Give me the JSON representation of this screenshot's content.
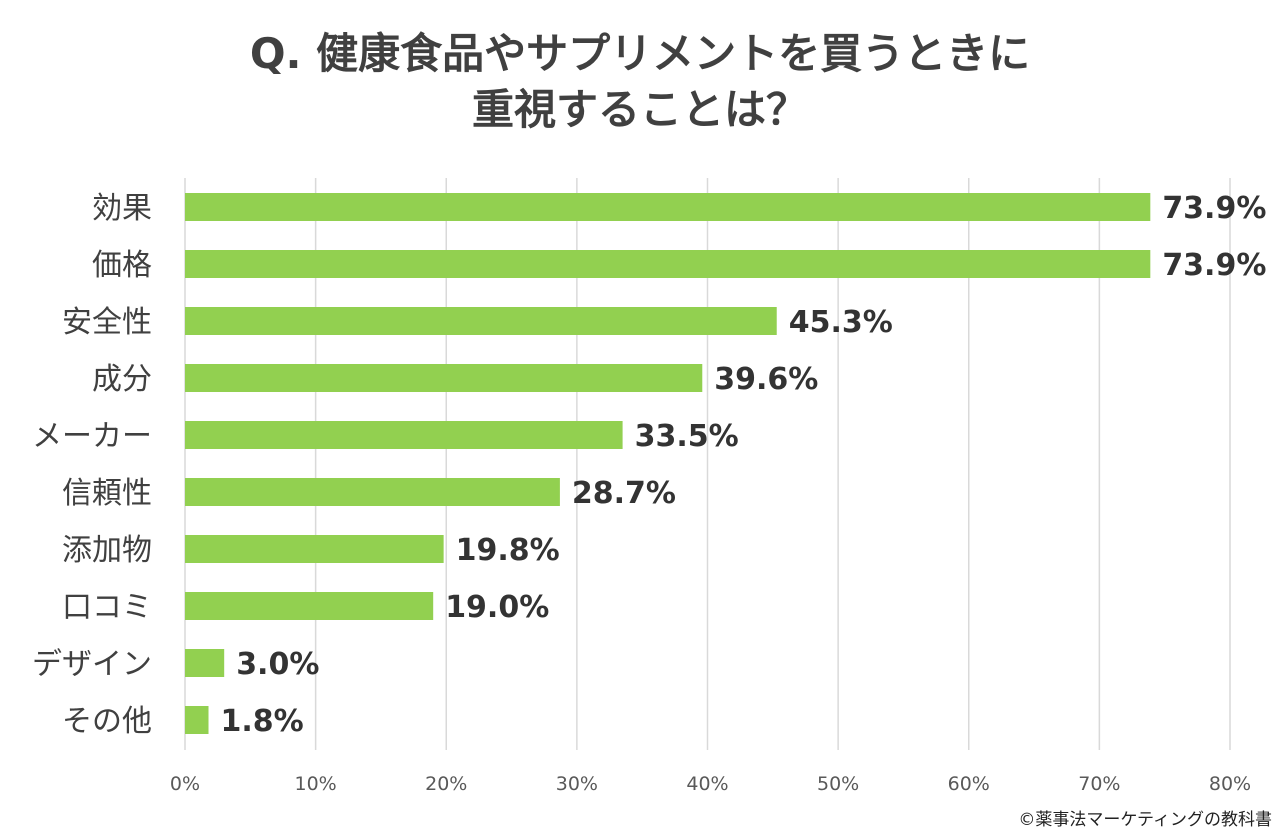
{
  "chart_data": {
    "type": "bar",
    "orientation": "horizontal",
    "title_lines": [
      "Q. 健康食品やサプリメントを買うときに",
      "重視することは？"
    ],
    "categories": [
      "効果",
      "価格",
      "安全性",
      "成分",
      "メーカー",
      "信頼性",
      "添加物",
      "口コミ",
      "デザイン",
      "その他"
    ],
    "values": [
      73.9,
      73.9,
      45.3,
      39.6,
      33.5,
      28.7,
      19.8,
      19.0,
      3.0,
      1.8
    ],
    "value_labels": [
      "73.9%",
      "73.9%",
      "45.3%",
      "39.6%",
      "33.5%",
      "28.7%",
      "19.8%",
      "19.0%",
      "3.0%",
      "1.8%"
    ],
    "xlim": [
      0,
      80
    ],
    "x_ticks": [
      0,
      10,
      20,
      30,
      40,
      50,
      60,
      70,
      80
    ],
    "x_tick_labels": [
      "0%",
      "10%",
      "20%",
      "30%",
      "40%",
      "50%",
      "60%",
      "70%",
      "80%"
    ],
    "grid": "vertical",
    "legend": "none",
    "bar_color": "#92d050",
    "grid_color": "#d9d9d9"
  },
  "copyright": "©薬事法マーケティングの教科書"
}
